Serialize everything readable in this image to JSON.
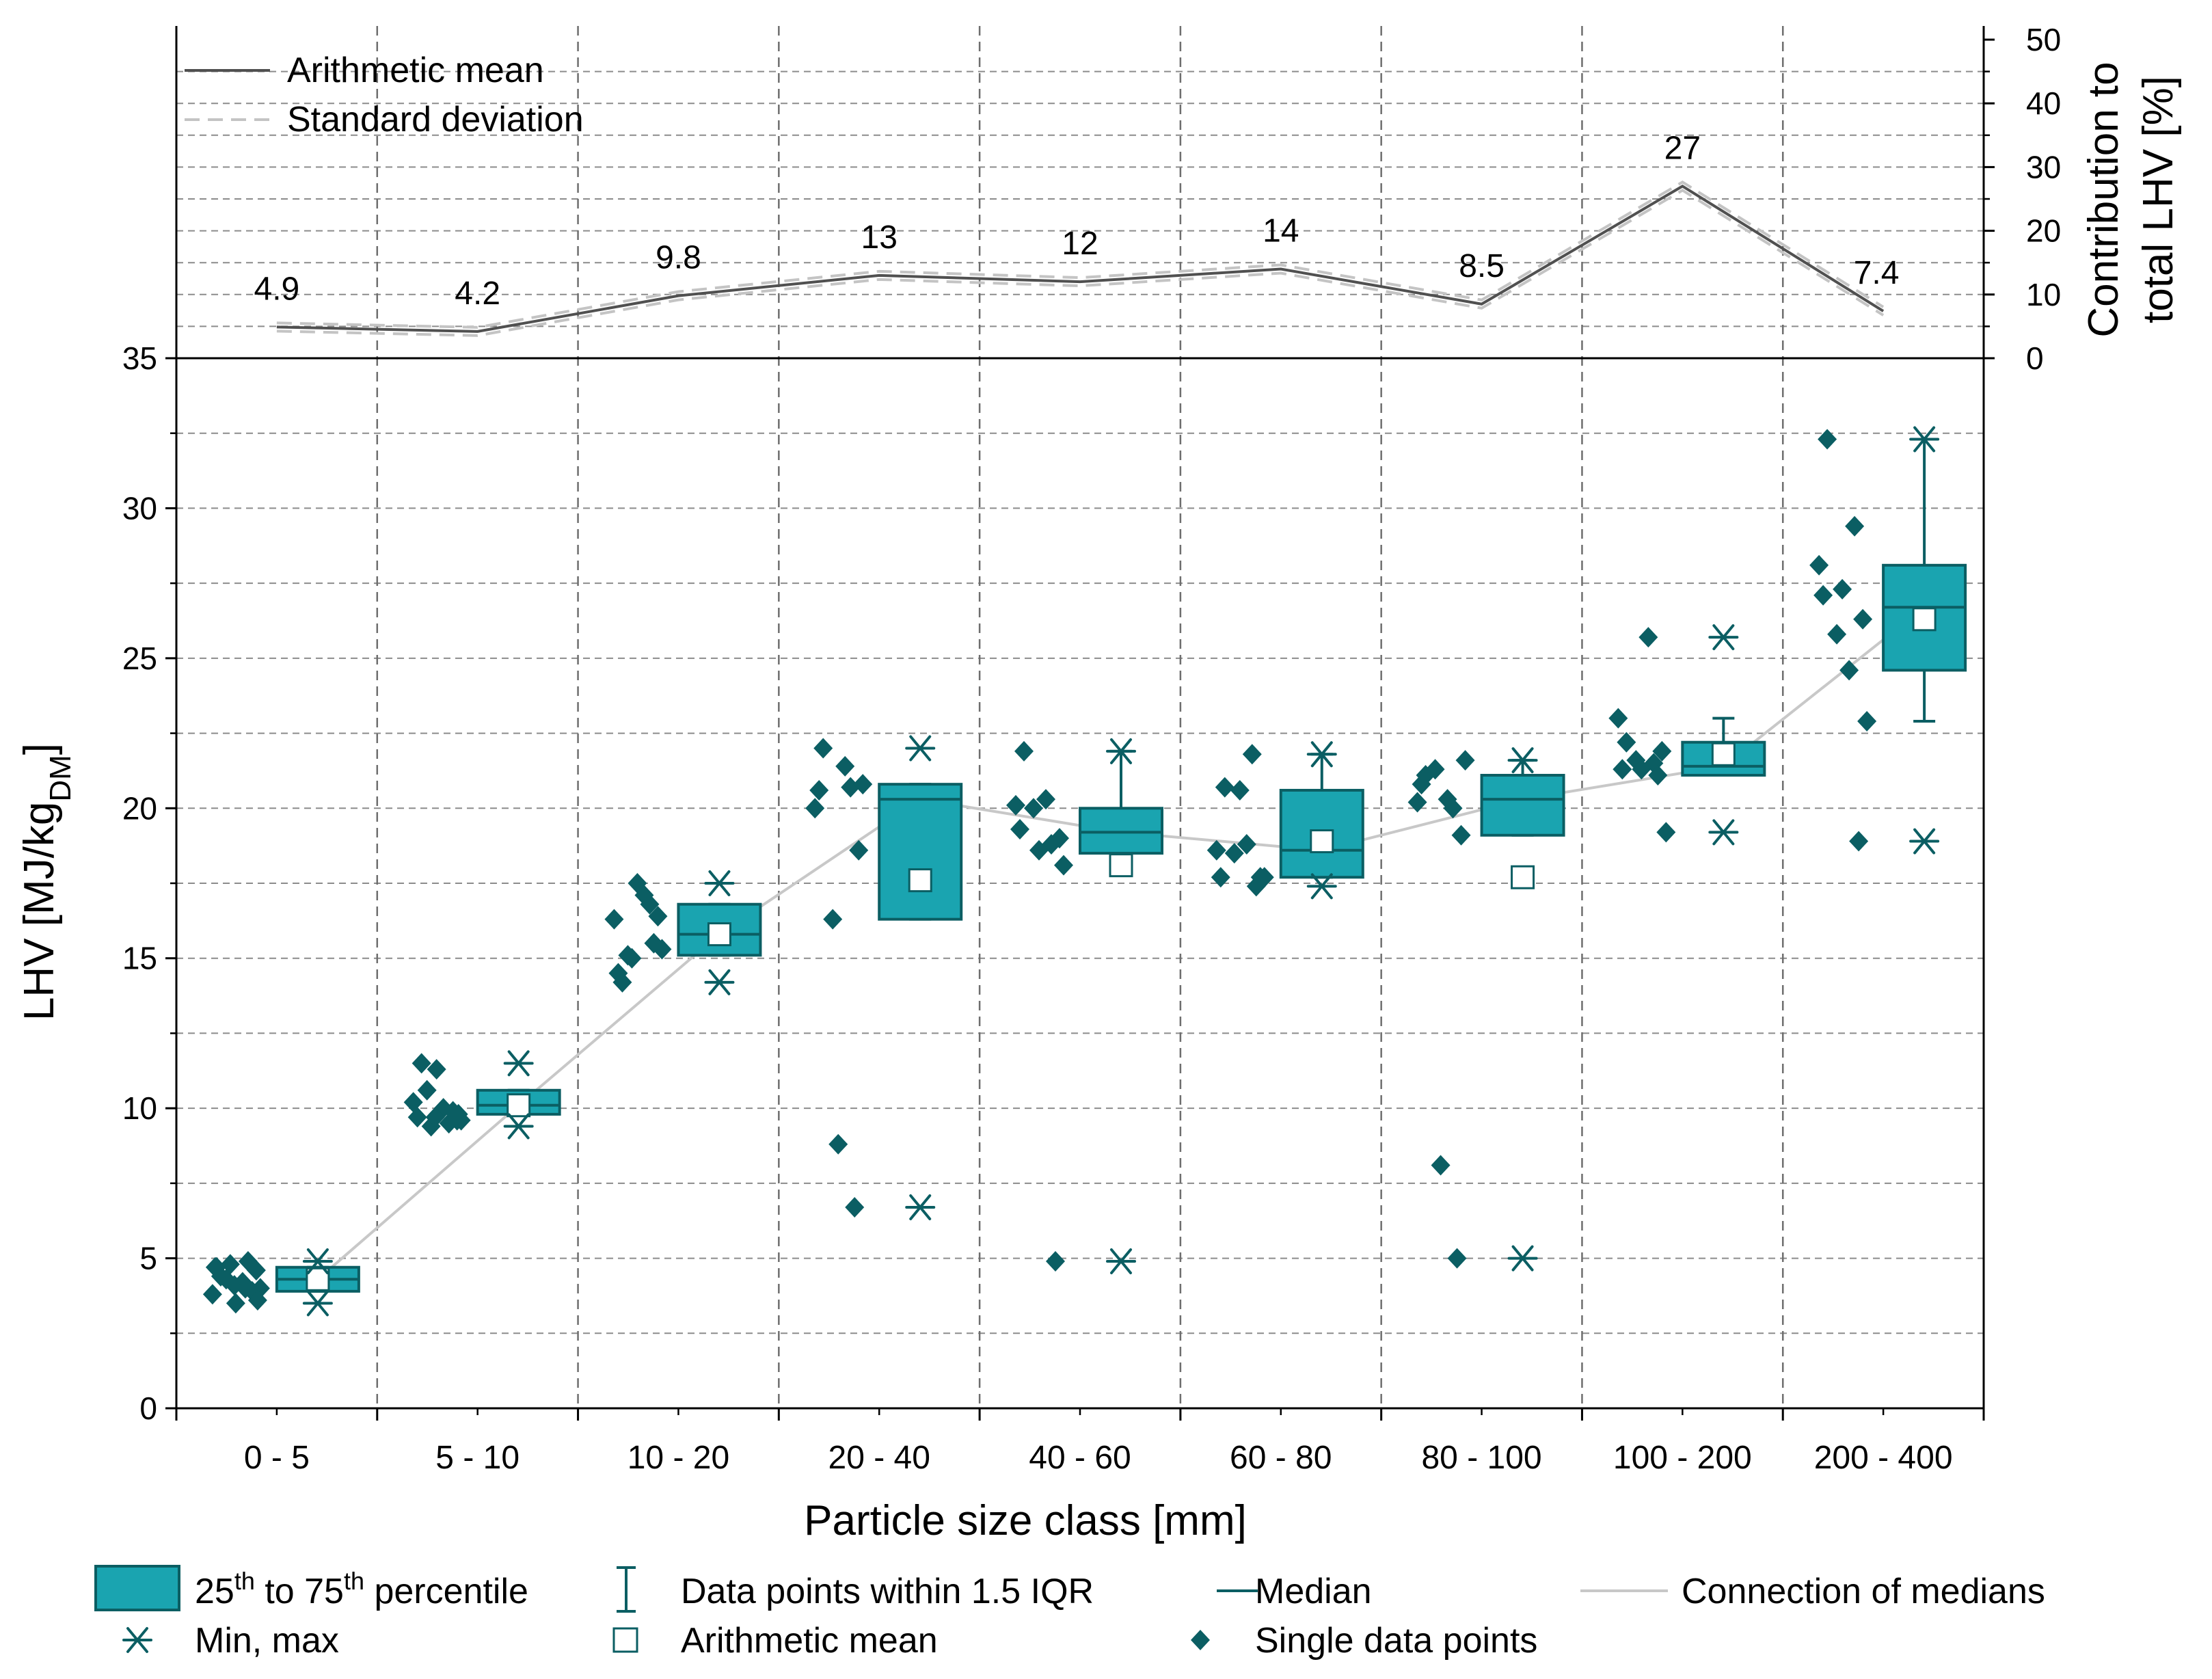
{
  "chart_data": {
    "type": "box",
    "xlabel": "Particle size class [mm]",
    "ylabel": "LHV [MJ/kg",
    "ylabel_sub": "DM",
    "ylabel_end": "]",
    "ylim": [
      0,
      35
    ],
    "yticks": [
      0,
      5,
      10,
      15,
      20,
      25,
      30,
      35
    ],
    "grid": true,
    "categories": [
      "0 - 5",
      "5 - 10",
      "10 - 20",
      "20 - 40",
      "40 - 60",
      "60 - 80",
      "80 - 100",
      "100 - 200",
      "200 - 400"
    ],
    "boxes": [
      {
        "q1": 3.9,
        "median": 4.3,
        "q3": 4.7,
        "whisker_low": 3.9,
        "whisker_high": 4.7,
        "mean": 4.3,
        "min": 3.5,
        "max": 4.9
      },
      {
        "q1": 9.8,
        "median": 10.1,
        "q3": 10.6,
        "whisker_low": 9.8,
        "whisker_high": 10.6,
        "mean": 10.1,
        "min": 9.4,
        "max": 11.5
      },
      {
        "q1": 15.1,
        "median": 15.8,
        "q3": 16.8,
        "whisker_low": 15.1,
        "whisker_high": 16.8,
        "mean": 15.8,
        "min": 14.2,
        "max": 17.5
      },
      {
        "q1": 16.3,
        "median": 20.3,
        "q3": 20.8,
        "whisker_low": 16.3,
        "whisker_high": 20.8,
        "mean": 17.6,
        "min": 6.7,
        "max": 22.0
      },
      {
        "q1": 18.5,
        "median": 19.2,
        "q3": 20.0,
        "whisker_low": 18.5,
        "whisker_high": 21.9,
        "mean": 18.1,
        "min": 4.9,
        "max": 21.9
      },
      {
        "q1": 17.7,
        "median": 18.6,
        "q3": 20.6,
        "whisker_low": 17.7,
        "whisker_high": 21.8,
        "mean": 18.9,
        "min": 17.4,
        "max": 21.8
      },
      {
        "q1": 19.1,
        "median": 20.3,
        "q3": 21.1,
        "whisker_low": 19.1,
        "whisker_high": 21.6,
        "mean": 17.7,
        "min": 5.0,
        "max": 21.6
      },
      {
        "q1": 21.1,
        "median": 21.4,
        "q3": 22.2,
        "whisker_low": 21.1,
        "whisker_high": 23.0,
        "mean": 21.8,
        "min": 19.2,
        "max": 25.7
      },
      {
        "q1": 24.6,
        "median": 26.7,
        "q3": 28.1,
        "whisker_low": 22.9,
        "whisker_high": 32.3,
        "mean": 26.3,
        "min": 18.9,
        "max": 32.3
      }
    ],
    "single_points": [
      [
        4.7,
        4.9,
        4.8,
        4.6,
        4.4,
        4.2,
        4.0,
        3.8,
        3.5,
        3.9,
        4.3,
        3.6,
        4.1,
        4.0,
        4.7
      ],
      [
        9.7,
        9.5,
        9.4,
        9.6,
        11.5,
        10.0,
        9.6,
        10.2,
        11.3,
        9.9,
        10.6,
        9.8,
        9.7
      ],
      [
        14.5,
        16.8,
        15.0,
        16.4,
        14.2,
        17.1,
        15.3,
        16.3,
        17.5,
        15.5,
        15.1
      ],
      [
        20.6,
        20.7,
        16.3,
        18.6,
        22.0,
        21.4,
        20.8,
        20.0,
        8.8,
        6.7
      ],
      [
        19.3,
        18.8,
        20.0,
        19.0,
        21.9,
        20.3,
        18.1,
        20.1,
        18.6,
        4.9
      ],
      [
        17.7,
        21.8,
        18.5,
        17.7,
        20.7,
        18.8,
        17.7,
        18.6,
        20.6,
        17.4
      ],
      [
        20.8,
        20.0,
        21.3,
        19.1,
        21.1,
        20.3,
        21.6,
        20.2,
        8.1,
        5.0
      ],
      [
        21.3,
        21.5,
        21.6,
        21.9,
        22.2,
        25.7,
        19.2,
        23.0,
        21.3,
        21.1
      ],
      [
        27.1,
        29.4,
        25.8,
        26.3,
        32.3,
        24.6,
        22.9,
        28.1,
        27.3,
        18.9
      ]
    ],
    "secondary": {
      "type": "line",
      "ylabel_line1": "Contribution to",
      "ylabel_line2": "total LHV [%]",
      "ylim": [
        0,
        50
      ],
      "yticks": [
        0,
        10,
        20,
        30,
        40,
        50
      ],
      "values": [
        4.9,
        4.2,
        9.8,
        13,
        12,
        14,
        8.5,
        27,
        7.4
      ],
      "labels": [
        "4.9",
        "4.2",
        "9.8",
        "13",
        "12",
        "14",
        "8.5",
        "27",
        "7.4"
      ],
      "legend": [
        "Arithmetic mean",
        "Standard deviation"
      ]
    },
    "legend": [
      "25th to 75th percentile",
      "Data points within 1.5 IQR",
      "Median",
      "Connection of medians",
      "Min, max",
      "Arithmetic mean",
      "Single data points"
    ],
    "colors": {
      "box_fill": "#1aa4b0",
      "dark_teal": "#0b5e63",
      "median_line": "#c8c8c8",
      "mean_line": "#505050",
      "std_line": "#c4c4c4"
    }
  }
}
